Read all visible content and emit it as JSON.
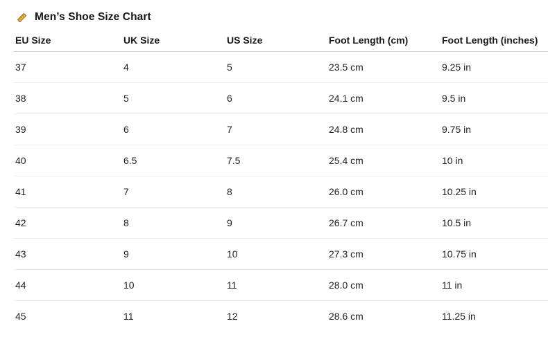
{
  "title": {
    "icon": "ruler-icon",
    "text": "Men’s Shoe Size Chart"
  },
  "table": {
    "columns": [
      "EU Size",
      "UK Size",
      "US Size",
      "Foot Length (cm)",
      "Foot Length (inches)"
    ],
    "rows": [
      [
        "37",
        "4",
        "5",
        "23.5 cm",
        "9.25 in"
      ],
      [
        "38",
        "5",
        "6",
        "24.1 cm",
        "9.5 in"
      ],
      [
        "39",
        "6",
        "7",
        "24.8 cm",
        "9.75 in"
      ],
      [
        "40",
        "6.5",
        "7.5",
        "25.4 cm",
        "10 in"
      ],
      [
        "41",
        "7",
        "8",
        "26.0 cm",
        "10.25 in"
      ],
      [
        "42",
        "8",
        "9",
        "26.7 cm",
        "10.5 in"
      ],
      [
        "43",
        "9",
        "10",
        "27.3 cm",
        "10.75 in"
      ],
      [
        "44",
        "10",
        "11",
        "28.0 cm",
        "11 in"
      ],
      [
        "45",
        "11",
        "12",
        "28.6 cm",
        "11.25 in"
      ]
    ]
  },
  "colors": {
    "background": "#ffffff",
    "text": "#1b1b1b",
    "header_border": "#d2d2d2",
    "row_border": "#eaeaea",
    "ruler_gold": "#f5b63a",
    "ruler_outline": "#8a6420"
  }
}
